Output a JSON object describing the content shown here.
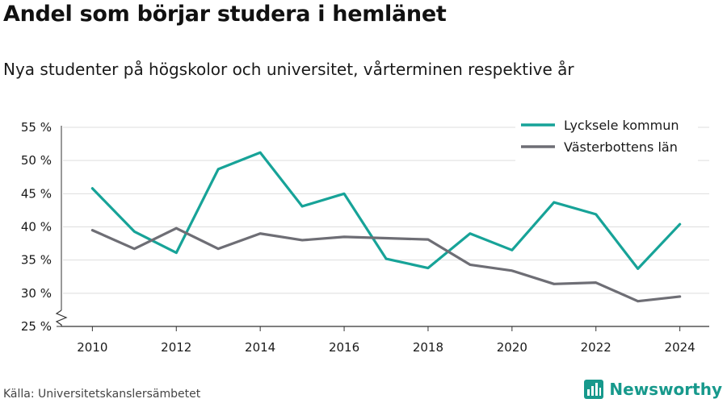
{
  "title": "Andel som börjar studera i hemlänet",
  "subtitle": "Nya studenter på högskolor och universitet, vårterminen respektive år",
  "source": "Källa: Universitetskanslersämbetet",
  "brand": {
    "name": "Newsworthy",
    "icon": "bar-chart-logo-icon",
    "color": "#17998c"
  },
  "chart_data": {
    "type": "line",
    "x": [
      2010,
      2011,
      2012,
      2013,
      2014,
      2015,
      2016,
      2017,
      2018,
      2019,
      2020,
      2021,
      2022,
      2023,
      2024
    ],
    "series": [
      {
        "name": "Lycksele kommun",
        "color": "#17a398",
        "values": [
          45.8,
          39.3,
          36.1,
          48.7,
          51.2,
          43.1,
          45.0,
          35.2,
          33.8,
          39.0,
          36.5,
          43.7,
          41.9,
          33.7,
          40.4
        ]
      },
      {
        "name": "Västerbottens län",
        "color": "#6e6e75",
        "values": [
          39.5,
          36.7,
          39.8,
          36.7,
          39.0,
          38.0,
          38.5,
          38.3,
          38.1,
          34.3,
          33.4,
          31.4,
          31.6,
          28.8,
          29.5
        ]
      }
    ],
    "ylim": [
      25,
      55
    ],
    "y_ticks": [
      25,
      30,
      35,
      40,
      45,
      50,
      55
    ],
    "y_tick_labels": [
      "25 %",
      "30 %",
      "35 %",
      "40 %",
      "45 %",
      "50 %",
      "55 %"
    ],
    "x_ticks": [
      2010,
      2012,
      2014,
      2016,
      2018,
      2020,
      2022,
      2024
    ],
    "x_tick_labels": [
      "2010",
      "2012",
      "2014",
      "2016",
      "2018",
      "2020",
      "2022",
      "2024"
    ],
    "grid": "horizontal",
    "axis_break": true,
    "legend": "top-right",
    "xlabel": "",
    "ylabel": ""
  }
}
